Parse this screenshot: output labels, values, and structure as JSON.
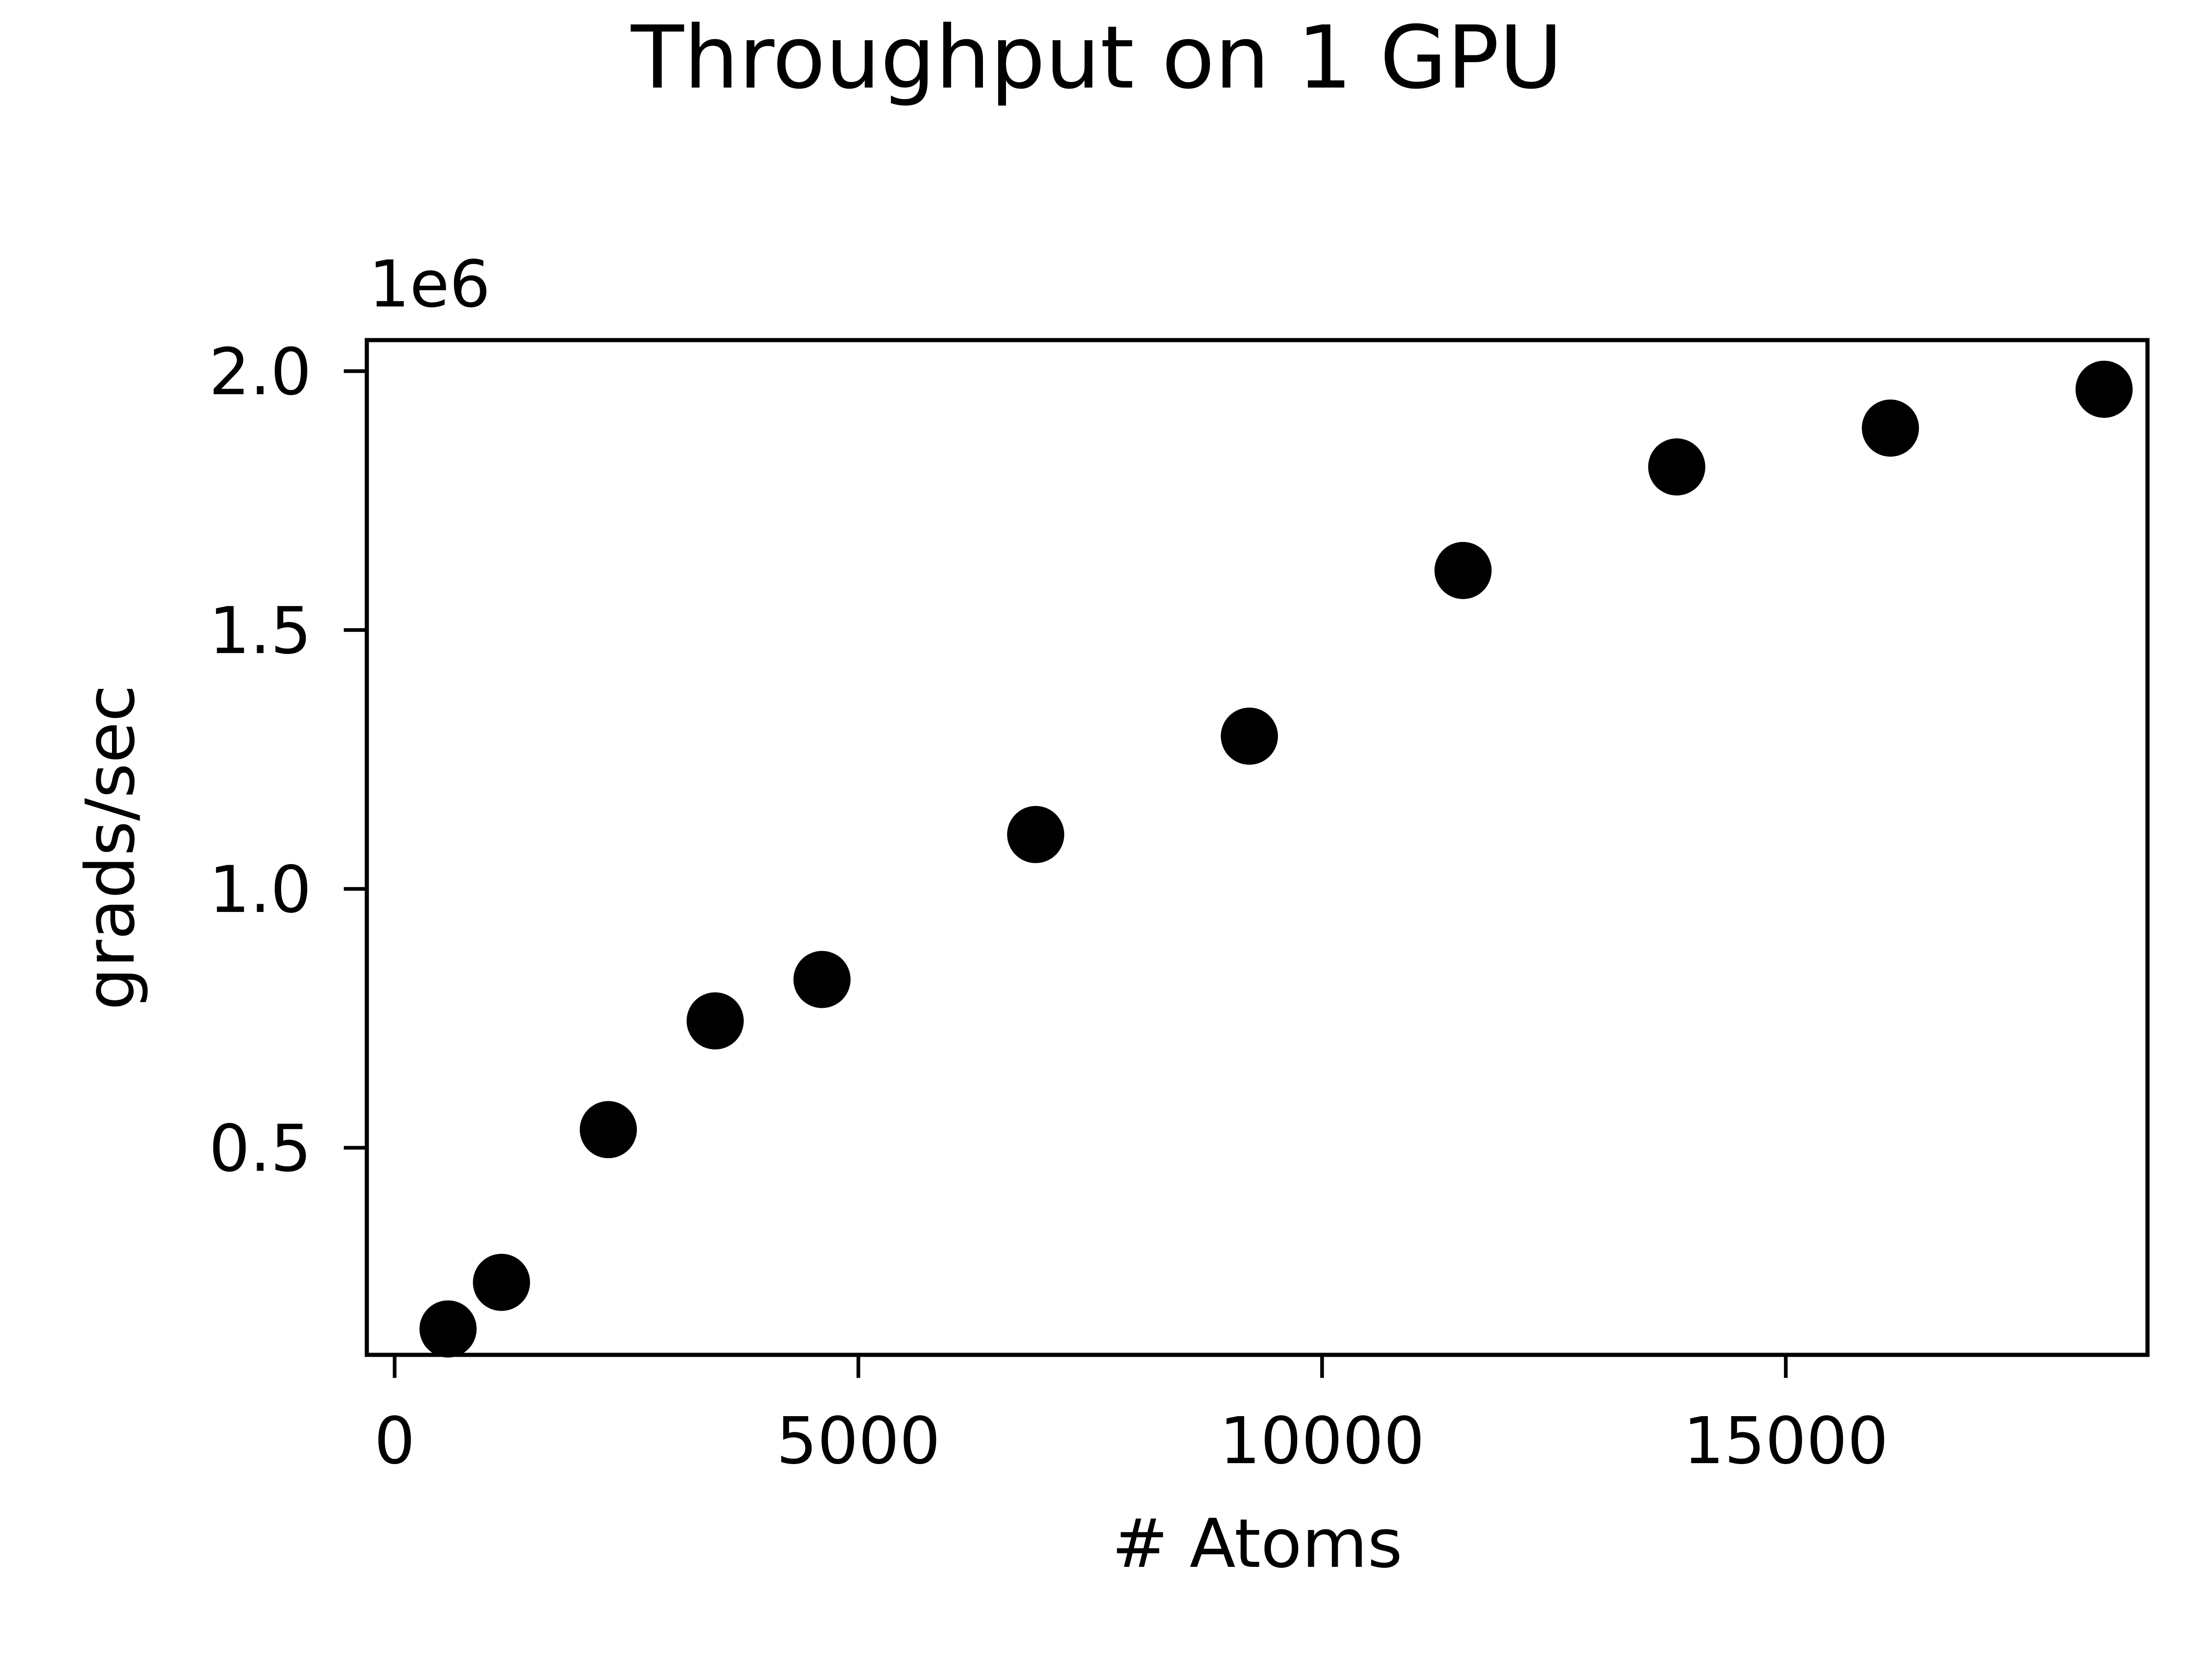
{
  "chart_data": {
    "type": "scatter",
    "title": "Throughput on 1 GPU",
    "xlabel": "# Atoms",
    "ylabel": "grads/sec",
    "y_offset_label": "1e6",
    "y_scale": 1000000,
    "xlim": [
      -300,
      18900
    ],
    "ylim": [
      100000,
      2060000
    ],
    "x_ticks": [
      0,
      5000,
      10000,
      15000
    ],
    "x_tick_labels": [
      "0",
      "5000",
      "10000",
      "15000"
    ],
    "y_ticks": [
      500000,
      1000000,
      1500000,
      2000000
    ],
    "y_tick_labels": [
      "0.5",
      "1.0",
      "1.5",
      "2.0"
    ],
    "grid": false,
    "legend": "none",
    "marker_color": "#000000",
    "series": [
      {
        "x": [
          576,
          1152,
          2304,
          3456,
          4608,
          6912,
          9216,
          11520,
          13824,
          16128,
          18432
        ],
        "y": [
          150000,
          240000,
          535000,
          745000,
          825000,
          1105000,
          1295000,
          1615000,
          1815000,
          1890000,
          1965000
        ]
      }
    ]
  }
}
